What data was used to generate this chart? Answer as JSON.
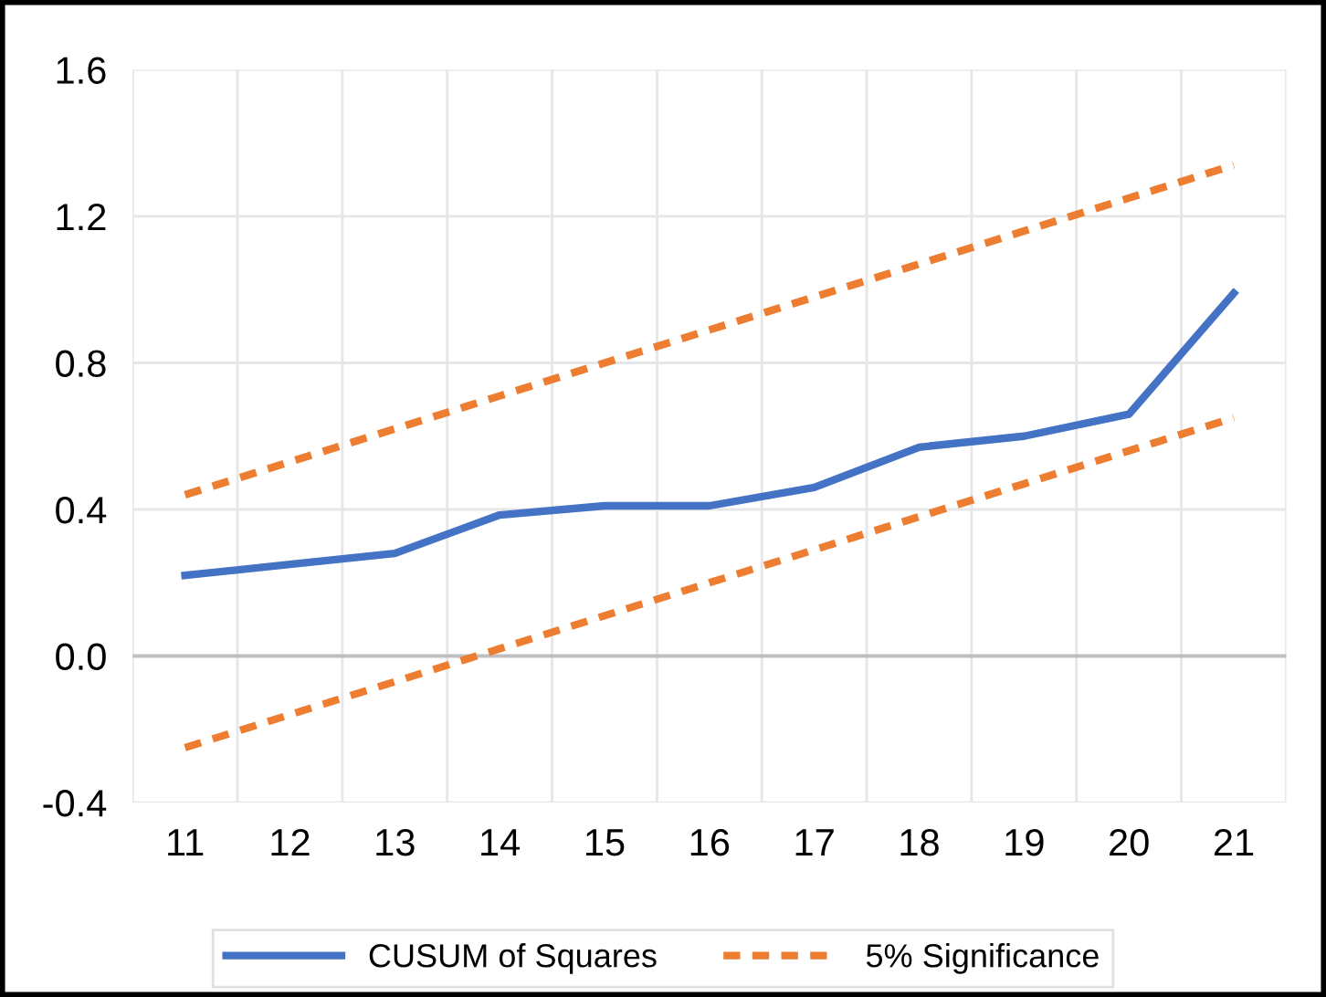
{
  "chart_data": {
    "type": "line",
    "categories": [
      "11",
      "12",
      "13",
      "14",
      "15",
      "16",
      "17",
      "18",
      "19",
      "20",
      "21"
    ],
    "series": [
      {
        "name": "CUSUM of Squares",
        "color": "#4472c4",
        "line_style": "solid",
        "values": [
          0.22,
          0.25,
          0.28,
          0.385,
          0.41,
          0.41,
          0.46,
          0.57,
          0.6,
          0.66,
          0.99
        ]
      },
      {
        "name": "5% Significance",
        "color": "#ed7d31",
        "line_style": "dashed",
        "values": [
          0.44,
          0.53,
          0.62,
          0.71,
          0.8,
          0.89,
          0.98,
          1.07,
          1.16,
          1.25,
          1.34
        ]
      },
      {
        "color": "#ed7d31",
        "line_style": "dashed",
        "values": [
          -0.25,
          -0.16,
          -0.07,
          0.02,
          0.11,
          0.2,
          0.29,
          0.38,
          0.47,
          0.56,
          0.65
        ]
      }
    ],
    "ylim": [
      -0.4,
      1.6
    ],
    "yticks": [
      -0.4,
      {
        "value": 0.0,
        "label": "0.0"
      },
      0.4,
      0.8,
      1.2,
      1.6
    ],
    "grid": true,
    "legend": "bottom",
    "marker": "none"
  }
}
